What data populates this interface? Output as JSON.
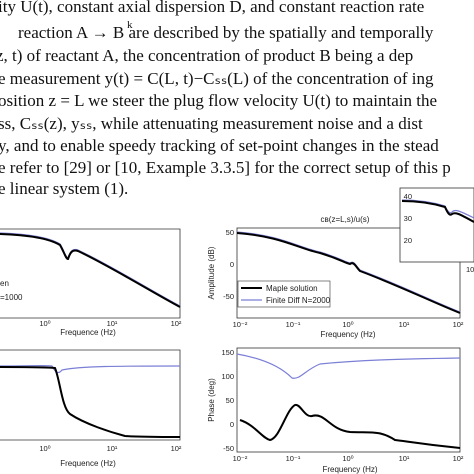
{
  "paragraph": {
    "lines": [
      "ity U(t), constant axial dispersion D, and constant reaction rate",
      "reaction A → B are described by the spatially and temporally",
      "z, t) of reactant A, the concentration of product B being a dep",
      "e measurement y(t) = C(L, t)−Cₛₛ(L) of the concentration of ing",
      "osition z = L we steer the plug flow velocity U(t) to maintain the",
      "ss, Cₛₛ(z), yₛₛ, while attenuating measurement noise and a dist",
      "y, and to enable speedy tracking of set-point changes in the stead",
      "e refer to [29] or [10, Example 3.3.5] for the correct setup of this p",
      "e linear system (1)."
    ],
    "arrow_label": "k"
  },
  "figure": {
    "top_left": {
      "xticks": [
        "10⁰",
        "10¹",
        "10²"
      ],
      "xlabel": "Frequence (Hz)",
      "legend": [
        "en",
        "=1000"
      ]
    },
    "top_right": {
      "title": "cʙ(z=L,s)/u(s)",
      "ylabel": "Amplitude (dB)",
      "xlabel": "Frequency (Hz)",
      "yticks": [
        "50",
        "0",
        "-50"
      ],
      "xticks": [
        "10⁻²",
        "10⁻¹",
        "10⁰",
        "10¹",
        "10²"
      ],
      "legend": [
        "Maple solution",
        "Finite Diff N=2000"
      ],
      "inset_yticks": [
        "40",
        "30",
        "20"
      ],
      "inset_xtick": "10"
    },
    "bottom_left": {
      "xticks": [
        "10⁰",
        "10¹",
        "10²"
      ],
      "xlabel": "Frequence (Hz)"
    },
    "bottom_right": {
      "ylabel": "Phase (deg)",
      "xlabel": "Frequency (Hz)",
      "yticks": [
        "150",
        "100",
        "50",
        "0",
        "-50"
      ],
      "xticks": [
        "10⁻²",
        "10⁻¹",
        "10⁰",
        "10¹",
        "10²"
      ]
    }
  }
}
